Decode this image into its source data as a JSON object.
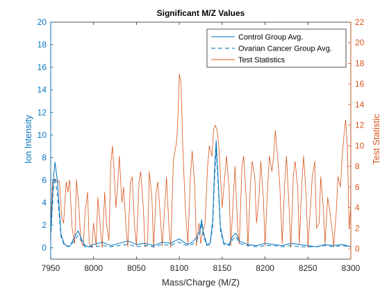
{
  "chart_data": {
    "type": "line",
    "title": "Significant M/Z Values",
    "xlabel": "Mass/Charge (M/Z)",
    "ylabel_left": "Ion Intensity",
    "ylabel_right": "Test Statistic",
    "xlim": [
      7950,
      8300
    ],
    "ylim_left": [
      -1,
      20
    ],
    "ylim_right": [
      -1,
      22
    ],
    "xticks": [
      7950,
      8000,
      8050,
      8100,
      8150,
      8200,
      8250,
      8300
    ],
    "yticks_left": [
      0,
      2,
      4,
      6,
      8,
      10,
      12,
      14,
      16,
      18,
      20
    ],
    "yticks_right": [
      0,
      2,
      4,
      6,
      8,
      10,
      12,
      14,
      16,
      18,
      20,
      22
    ],
    "grid": false,
    "legend_position": "top-right",
    "colors": {
      "left_axis": "#0072BD",
      "right_axis": "#D95319",
      "control": "#0072BD",
      "cancer": "#0072BD",
      "test_stat": "#D95319",
      "axes_box": "#262626"
    },
    "series": [
      {
        "name": "Control Group Avg.",
        "axis": "left",
        "style": "solid",
        "x": [
          7950,
          7953,
          7955,
          7958,
          7962,
          7966,
          7972,
          7978,
          7982,
          7986,
          7990,
          7994,
          8000,
          8010,
          8020,
          8030,
          8040,
          8050,
          8060,
          8070,
          8080,
          8090,
          8095,
          8100,
          8105,
          8110,
          8115,
          8120,
          8124,
          8126,
          8128,
          8132,
          8136,
          8139,
          8141,
          8143,
          8145,
          8148,
          8152,
          8158,
          8162,
          8166,
          8170,
          8180,
          8190,
          8200,
          8210,
          8220,
          8230,
          8240,
          8250,
          8260,
          8270,
          8280,
          8290,
          8300
        ],
        "values": [
          1.2,
          6.0,
          7.6,
          5.8,
          1.2,
          0.3,
          0.1,
          1.0,
          1.5,
          0.8,
          0.2,
          0.1,
          0.3,
          0.5,
          0.2,
          0.4,
          0.6,
          0.3,
          0.4,
          0.2,
          0.5,
          0.4,
          0.6,
          0.8,
          0.5,
          0.3,
          0.5,
          0.9,
          1.5,
          2.5,
          1.4,
          0.3,
          0.4,
          2.5,
          6.8,
          9.5,
          6.5,
          1.8,
          0.4,
          0.3,
          1.0,
          1.3,
          0.6,
          0.3,
          0.2,
          0.4,
          0.3,
          0.2,
          0.4,
          0.3,
          0.2,
          0.1,
          0.3,
          0.2,
          0.3,
          0.1
        ]
      },
      {
        "name": "Ovarian Cancer Group Avg.",
        "axis": "left",
        "style": "dashed",
        "x": [
          7950,
          7953,
          7955,
          7958,
          7962,
          7966,
          7972,
          7978,
          7982,
          7986,
          7990,
          7994,
          8000,
          8010,
          8020,
          8030,
          8040,
          8050,
          8060,
          8070,
          8080,
          8090,
          8095,
          8100,
          8105,
          8110,
          8115,
          8120,
          8124,
          8126,
          8128,
          8132,
          8136,
          8139,
          8141,
          8143,
          8145,
          8148,
          8152,
          8158,
          8162,
          8166,
          8170,
          8180,
          8190,
          8200,
          8210,
          8220,
          8230,
          8240,
          8250,
          8260,
          8270,
          8280,
          8290,
          8300
        ],
        "values": [
          0.8,
          5.2,
          6.2,
          4.6,
          1.0,
          0.2,
          0.1,
          0.7,
          1.1,
          0.6,
          0.1,
          0.1,
          0.1,
          0.2,
          0.1,
          0.2,
          0.3,
          0.1,
          0.2,
          0.1,
          0.3,
          0.2,
          0.4,
          0.5,
          0.3,
          0.2,
          0.3,
          0.6,
          1.2,
          2.2,
          1.1,
          0.2,
          0.3,
          2.0,
          6.0,
          8.8,
          6.0,
          1.5,
          0.3,
          0.2,
          0.7,
          1.0,
          0.4,
          0.2,
          0.1,
          0.2,
          0.2,
          0.1,
          0.2,
          0.1,
          0.1,
          0.1,
          0.2,
          0.1,
          0.2,
          0.1
        ]
      },
      {
        "name": "Test Statistics",
        "axis": "right",
        "style": "solid",
        "x": [
          7950,
          7952,
          7955,
          7958,
          7960,
          7963,
          7965,
          7968,
          7970,
          7972,
          7975,
          7978,
          7980,
          7983,
          7985,
          7988,
          7990,
          7993,
          7995,
          7998,
          8000,
          8003,
          8005,
          8008,
          8010,
          8013,
          8015,
          8018,
          8020,
          8022,
          8024,
          8026,
          8028,
          8030,
          8033,
          8035,
          8038,
          8040,
          8043,
          8045,
          8048,
          8050,
          8053,
          8055,
          8058,
          8060,
          8063,
          8065,
          8068,
          8070,
          8073,
          8075,
          8078,
          8080,
          8083,
          8085,
          8088,
          8090,
          8093,
          8095,
          8097,
          8099,
          8100,
          8102,
          8104,
          8107,
          8110,
          8113,
          8115,
          8118,
          8120,
          8123,
          8125,
          8127,
          8130,
          8133,
          8135,
          8138,
          8140,
          8142,
          8144,
          8146,
          8148,
          8150,
          8153,
          8155,
          8158,
          8160,
          8163,
          8165,
          8168,
          8170,
          8173,
          8175,
          8178,
          8180,
          8183,
          8185,
          8188,
          8190,
          8193,
          8195,
          8198,
          8200,
          8203,
          8205,
          8208,
          8210,
          8212,
          8214,
          8217,
          8220,
          8223,
          8225,
          8228,
          8230,
          8233,
          8235,
          8238,
          8240,
          8243,
          8245,
          8248,
          8250,
          8253,
          8255,
          8258,
          8260,
          8263,
          8265,
          8268,
          8270,
          8273,
          8275,
          8278,
          8280,
          8283,
          8285,
          8288,
          8290,
          8292,
          8294,
          8296,
          8298,
          8300
        ],
        "values": [
          2.0,
          6.5,
          6.8,
          6.5,
          6.6,
          3.0,
          2.5,
          6.5,
          5.5,
          6.7,
          2.0,
          0.5,
          6.7,
          4.0,
          0.8,
          0.3,
          3.5,
          5.5,
          0.5,
          0.1,
          2.5,
          0.3,
          5.0,
          2.0,
          0.1,
          5.5,
          2.5,
          0.8,
          8.2,
          10.0,
          7.5,
          4.0,
          6.0,
          9.0,
          4.5,
          6.0,
          2.0,
          0.2,
          6.5,
          7.0,
          2.0,
          0.3,
          6.5,
          7.5,
          4.0,
          0.2,
          0.5,
          7.5,
          5.0,
          0.1,
          5.5,
          6.5,
          3.0,
          0.3,
          4.0,
          7.0,
          2.0,
          0.1,
          8.5,
          9.5,
          10.5,
          14.0,
          17.0,
          16.0,
          10.0,
          4.0,
          0.5,
          7.0,
          9.5,
          6.0,
          0.3,
          2.5,
          0.5,
          1.5,
          2.5,
          8.0,
          10.0,
          9.0,
          11.5,
          12.0,
          11.5,
          10.0,
          7.0,
          4.0,
          7.0,
          9.0,
          6.0,
          0.3,
          5.0,
          8.0,
          2.0,
          0.5,
          8.0,
          9.0,
          5.0,
          0.2,
          6.5,
          8.5,
          7.0,
          2.5,
          5.0,
          8.5,
          5.0,
          0.3,
          6.0,
          9.0,
          7.5,
          9.0,
          11.5,
          9.5,
          6.5,
          0.5,
          6.5,
          9.0,
          4.0,
          0.1,
          7.0,
          8.5,
          6.0,
          0.5,
          6.5,
          9.0,
          5.0,
          0.1,
          4.0,
          7.0,
          8.5,
          2.0,
          2.5,
          7.0,
          4.0,
          0.5,
          5.0,
          4.0,
          2.0,
          0.2,
          3.5,
          7.0,
          6.0,
          9.0,
          11.0,
          12.5,
          10.0,
          2.0,
          4.0
        ]
      }
    ]
  }
}
